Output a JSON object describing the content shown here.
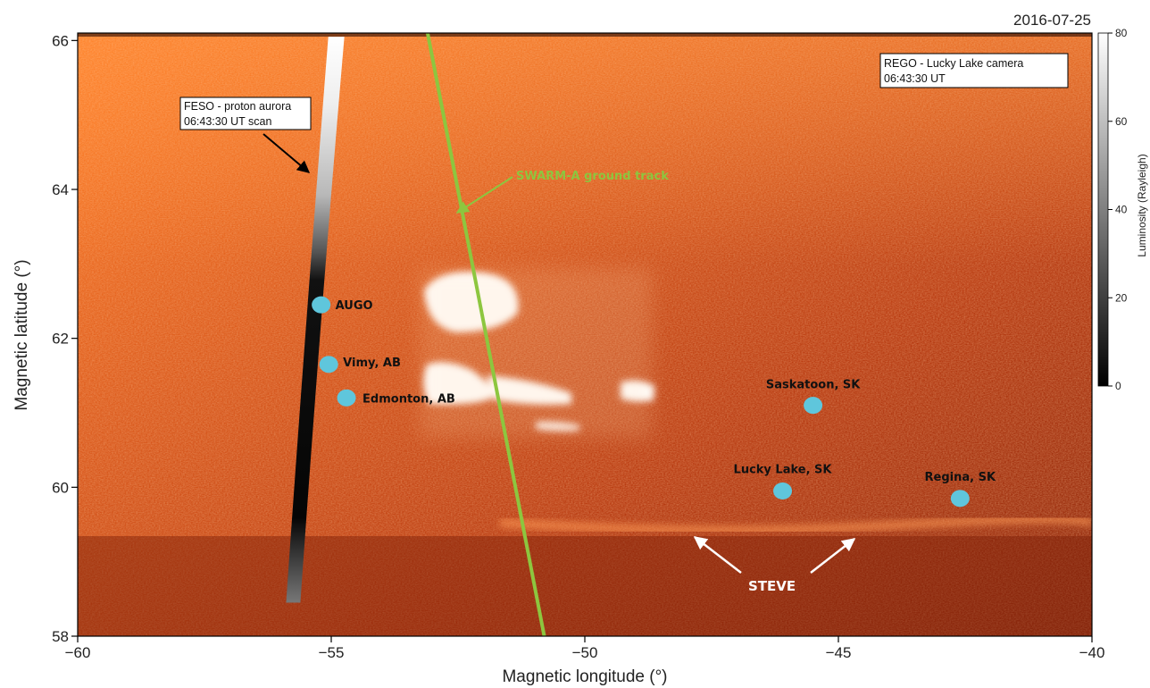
{
  "date": "2016-07-25",
  "colors": {
    "background_dark": "#8a2408",
    "background_mid": "#b83d10",
    "background_bright": "#e06a1c",
    "swarm_track": "#8dc63f",
    "site_marker": "#5fc6dc",
    "annotation_white": "#ffffff"
  },
  "chart_data": {
    "type": "scatter",
    "title": "",
    "xlabel": "Magnetic longitude (°)",
    "ylabel": "Magnetic  latitude (°)",
    "xlim": [
      -60,
      -40
    ],
    "ylim": [
      58,
      66.1
    ],
    "x_ticks": [
      -60,
      -55,
      -50,
      -45,
      -40
    ],
    "x_tick_labels": [
      "−60",
      "−55",
      "−50",
      "−45",
      "−40"
    ],
    "y_ticks": [
      58,
      60,
      62,
      64,
      66
    ],
    "y_tick_labels": [
      "58",
      "60",
      "62",
      "64",
      "66"
    ],
    "series": [
      {
        "points": [
          {
            "label": "AUGO",
            "lon": -55.2,
            "lat": 62.45
          },
          {
            "label": "Vimy, AB",
            "lon": -55.05,
            "lat": 61.65
          },
          {
            "label": "Edmonton, AB",
            "lon": -54.7,
            "lat": 61.2
          },
          {
            "label": "Saskatoon, SK",
            "lon": -45.5,
            "lat": 61.1
          },
          {
            "label": "Lucky Lake, SK",
            "lon": -46.1,
            "lat": 59.95
          },
          {
            "label": "Regina, SK",
            "lon": -42.6,
            "lat": 59.85
          }
        ]
      }
    ],
    "swarm_track": {
      "label": "SWARM-A ground track",
      "start": {
        "lon": -53.1,
        "lat": 66.1
      },
      "end": {
        "lon": -50.8,
        "lat": 58
      }
    },
    "feso_scan": {
      "start": {
        "lon": -54.9,
        "lat": 66.05
      },
      "end": {
        "lon": -55.75,
        "lat": 58.45
      }
    },
    "colorbar": {
      "label": "Luminosity (Rayleigh)",
      "min": 0,
      "max": 80,
      "ticks": [
        0,
        20,
        40,
        60,
        80
      ]
    },
    "annotations": {
      "feso_box": [
        "FESO - proton aurora",
        "06:43:30 UT  scan"
      ],
      "rego_box": [
        "REGO - Lucky Lake camera",
        "06:43:30 UT"
      ],
      "steve": "STEVE"
    }
  }
}
